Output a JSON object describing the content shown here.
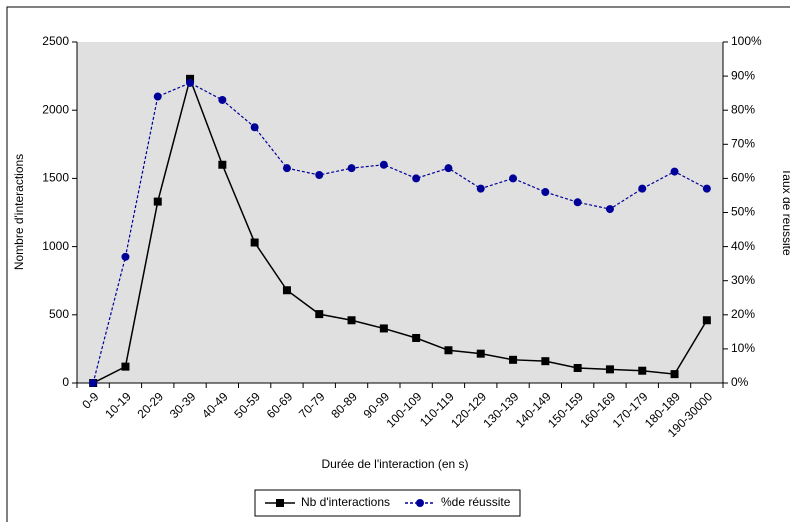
{
  "chart_data": {
    "type": "line",
    "x_label": "Durée de l'interaction (en s)",
    "y_label": "Nombre d'interactions",
    "y2_label": "Taux de réussite",
    "categories": [
      "0-9",
      "10-19",
      "20-29",
      "30-39",
      "40-49",
      "50-59",
      "60-69",
      "70-79",
      "80-89",
      "90-99",
      "100-109",
      "110-119",
      "120-129",
      "130-139",
      "140-149",
      "150-159",
      "160-169",
      "170-179",
      "180-189",
      "190-30000"
    ],
    "series": [
      {
        "name": "Nb d'interactions",
        "color": "#000000",
        "marker": "square",
        "dashed": false,
        "values": [
          0,
          120,
          1330,
          2230,
          1600,
          1030,
          680,
          505,
          460,
          400,
          330,
          240,
          215,
          170,
          160,
          110,
          100,
          90,
          65,
          460
        ]
      },
      {
        "name": "%de réussite",
        "color": "#000099",
        "marker": "circle",
        "dashed": true,
        "axis": "y2",
        "values": [
          0,
          37,
          84,
          88,
          83,
          75,
          63,
          61,
          63,
          64,
          60,
          63,
          57,
          60,
          56,
          53,
          51,
          57,
          62,
          57
        ]
      }
    ],
    "ylim": [
      0,
      2500
    ],
    "yticks": [
      0,
      500,
      1000,
      1500,
      2000,
      2500
    ],
    "y2lim": [
      0,
      100
    ],
    "y2ticks": [
      {
        "value": 0,
        "label": "0%"
      },
      {
        "value": 10,
        "label": "10%"
      },
      {
        "value": 20,
        "label": "20%"
      },
      {
        "value": 30,
        "label": "30%"
      },
      {
        "value": 40,
        "label": "40%"
      },
      {
        "value": 50,
        "label": "50%"
      },
      {
        "value": 60,
        "label": "60%"
      },
      {
        "value": 70,
        "label": "70%"
      },
      {
        "value": 80,
        "label": "80%"
      },
      {
        "value": 90,
        "label": "90%"
      },
      {
        "value": 100,
        "label": "100%"
      }
    ],
    "grid": false,
    "legend": "bottom"
  }
}
